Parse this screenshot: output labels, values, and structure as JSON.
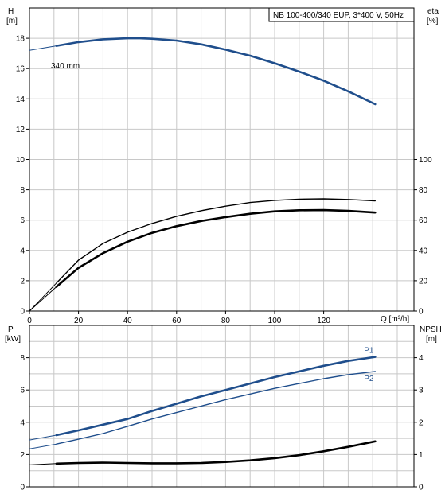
{
  "chart_data": [
    {
      "type": "line",
      "title": "NB 100-400/340 EUP, 3*400 V, 50Hz",
      "xlabel": "Q [m³/h]",
      "xlim": [
        0,
        145
      ],
      "x_ticks": [
        0,
        20,
        40,
        60,
        80,
        100,
        120
      ],
      "left_axis": {
        "label_top": "H",
        "label_unit": "[m]",
        "ylim": [
          0,
          20
        ],
        "ticks": [
          0,
          2,
          4,
          6,
          8,
          10,
          12,
          14,
          16,
          18
        ]
      },
      "right_axis": {
        "label_top": "eta",
        "label_unit": "[%]",
        "ylim": [
          0,
          100
        ],
        "ticks": [
          0,
          20,
          40,
          60,
          80,
          100
        ],
        "note": "eta axis spans 0-100 over H 0-10"
      },
      "grid": true,
      "annotations": [
        {
          "text": "340 mm"
        }
      ],
      "series": [
        {
          "name": "H",
          "axis": "left",
          "color": "#1f4e8c",
          "thin_extension_x": [
            0,
            11
          ],
          "x": [
            0,
            11,
            20,
            30,
            40,
            45,
            50,
            60,
            70,
            80,
            90,
            100,
            110,
            120,
            130,
            141
          ],
          "y": [
            17.2,
            17.5,
            17.75,
            17.93,
            18.0,
            18.0,
            17.97,
            17.85,
            17.6,
            17.25,
            16.85,
            16.35,
            15.8,
            15.2,
            14.5,
            13.65
          ]
        },
        {
          "axis": "right",
          "color": "#000000",
          "thin_extension_x": [
            0,
            11
          ],
          "x": [
            0,
            11,
            20,
            30,
            40,
            50,
            60,
            70,
            80,
            90,
            100,
            110,
            120,
            130,
            141
          ],
          "y": [
            0,
            18.5,
            33.6,
            44.6,
            52.0,
            57.8,
            62.5,
            66.2,
            69.2,
            71.6,
            73.0,
            73.8,
            74.0,
            73.6,
            72.7
          ]
        },
        {
          "axis": "right",
          "color": "#000000",
          "thin_extension_x": [
            0,
            11
          ],
          "x": [
            0,
            11,
            20,
            30,
            40,
            50,
            60,
            70,
            80,
            90,
            100,
            110,
            120,
            130,
            141
          ],
          "y": [
            0,
            16.0,
            28.5,
            38.2,
            45.8,
            51.6,
            56.0,
            59.4,
            62.0,
            64.2,
            65.8,
            66.5,
            66.6,
            66.1,
            65.0
          ]
        }
      ]
    },
    {
      "type": "line",
      "xlim": [
        0,
        145
      ],
      "left_axis": {
        "label_top": "P",
        "label_unit": "[kW]",
        "ylim": [
          0,
          10
        ],
        "ticks": [
          0,
          2,
          4,
          6,
          8
        ]
      },
      "right_axis": {
        "label_top": "NPSH",
        "label_unit": "[m]",
        "ylim": [
          0,
          5
        ],
        "ticks": [
          0,
          1,
          2,
          3,
          4
        ]
      },
      "grid": true,
      "series": [
        {
          "name": "P1",
          "axis": "left",
          "color": "#1f4e8c",
          "thin_extension_x": [
            0,
            11
          ],
          "x": [
            0,
            11,
            20,
            30,
            40,
            50,
            60,
            70,
            80,
            90,
            100,
            110,
            120,
            130,
            141
          ],
          "y": [
            2.9,
            3.2,
            3.5,
            3.85,
            4.2,
            4.7,
            5.15,
            5.6,
            6.0,
            6.4,
            6.8,
            7.15,
            7.5,
            7.8,
            8.05
          ]
        },
        {
          "name": "P2",
          "axis": "left",
          "color": "#1f4e8c",
          "thin_extension_x": [
            0,
            11
          ],
          "x": [
            0,
            11,
            20,
            30,
            40,
            50,
            60,
            70,
            80,
            90,
            100,
            110,
            120,
            130,
            141
          ],
          "y": [
            2.35,
            2.65,
            2.95,
            3.3,
            3.75,
            4.2,
            4.6,
            5.0,
            5.4,
            5.75,
            6.1,
            6.4,
            6.7,
            6.95,
            7.15
          ]
        },
        {
          "axis": "right",
          "color": "#000000",
          "thin_extension_x": [
            0,
            11
          ],
          "x": [
            0,
            11,
            20,
            30,
            40,
            50,
            60,
            70,
            80,
            90,
            100,
            110,
            120,
            130,
            141
          ],
          "y": [
            0.68,
            0.72,
            0.74,
            0.75,
            0.74,
            0.73,
            0.73,
            0.74,
            0.77,
            0.82,
            0.89,
            0.98,
            1.1,
            1.24,
            1.41
          ]
        }
      ]
    }
  ]
}
